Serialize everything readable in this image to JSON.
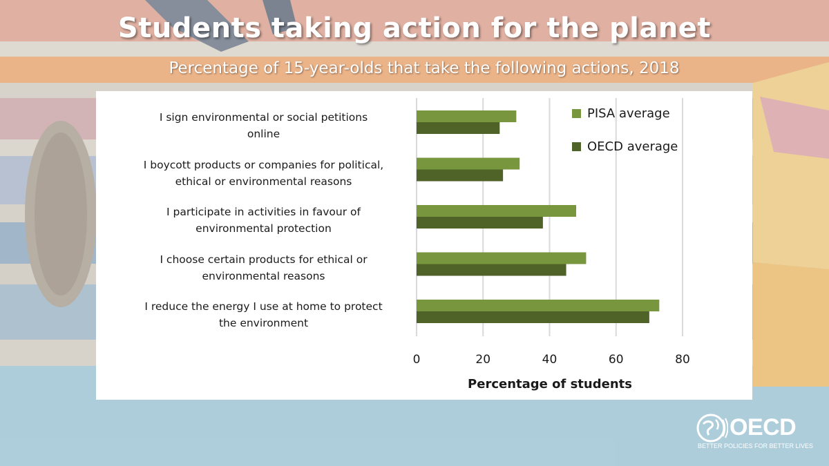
{
  "header": {
    "title": "Students taking action for the planet",
    "subtitle": "Percentage of 15-year-olds that take the following actions, 2018"
  },
  "colors": {
    "pisa": "#77963e",
    "oecd": "#4f6228",
    "grid": "#d9d9d9"
  },
  "chart_data": {
    "type": "bar",
    "orientation": "horizontal",
    "categories": [
      "I sign environmental or social petitions online",
      "I boycott products or companies for political, ethical or environmental reasons",
      "I participate in activities in favour of environmental protection",
      "I choose certain products for ethical or environmental reasons",
      "I reduce the energy I use at home to protect the environment"
    ],
    "category_lines": [
      [
        "I sign environmental or social petitions",
        "online"
      ],
      [
        "I boycott products or companies for political,",
        "ethical or environmental reasons"
      ],
      [
        "I participate in activities in favour of",
        "environmental protection"
      ],
      [
        "I choose certain products for ethical or",
        "environmental reasons"
      ],
      [
        "I reduce the energy I use at home to protect",
        "the environment"
      ]
    ],
    "series": [
      {
        "name": "PISA average",
        "values": [
          30,
          31,
          48,
          51,
          73
        ]
      },
      {
        "name": "OECD average",
        "values": [
          25,
          26,
          38,
          45,
          70
        ]
      }
    ],
    "xlabel": "Percentage of students",
    "xlim": [
      0,
      80
    ],
    "xticks": [
      "0",
      "20",
      "40",
      "60",
      "80"
    ],
    "grid": true,
    "legend": "top-right"
  },
  "logo": {
    "name": "OECD",
    "tagline": "BETTER POLICIES FOR BETTER LIVES"
  }
}
